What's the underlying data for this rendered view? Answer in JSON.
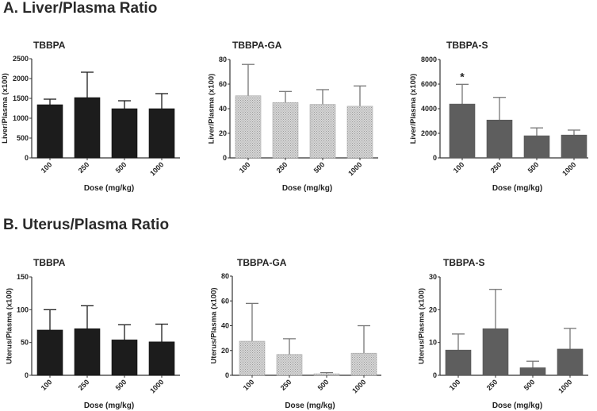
{
  "figure": {
    "section_a_title": "A. Liver/Plasma Ratio",
    "section_b_title": "B. Uterus/Plasma Ratio"
  },
  "chart_data": [
    {
      "type": "bar",
      "section": "A",
      "title": "TBBPA",
      "xlabel": "Dose (mg/kg)",
      "ylabel": "Liver/Plasma (x100)",
      "categories": [
        "100",
        "250",
        "500",
        "1000"
      ],
      "values": [
        1340,
        1520,
        1240,
        1240
      ],
      "error_upper": [
        1480,
        2160,
        1440,
        1620
      ],
      "ylim": [
        0,
        2500
      ],
      "yticks": [
        0,
        500,
        1000,
        1500,
        2000,
        2500
      ],
      "fill": "solid-black",
      "annotations": []
    },
    {
      "type": "bar",
      "section": "A",
      "title": "TBBPA-GA",
      "xlabel": "Dose (mg/kg)",
      "ylabel": "Liver/Plasma (x100)",
      "categories": [
        "100",
        "250",
        "500",
        "1000"
      ],
      "values": [
        50.5,
        45,
        43.5,
        42
      ],
      "error_upper": [
        76,
        54,
        55.5,
        58.5
      ],
      "ylim": [
        0,
        80
      ],
      "yticks": [
        0,
        20,
        40,
        60,
        80
      ],
      "fill": "hatched-light-gray",
      "annotations": []
    },
    {
      "type": "bar",
      "section": "A",
      "title": "TBBPA-S",
      "xlabel": "Dose (mg/kg)",
      "ylabel": "Liver/Plasma (x100)",
      "categories": [
        "100",
        "250",
        "500",
        "1000"
      ],
      "values": [
        4380,
        3080,
        1800,
        1860
      ],
      "error_upper": [
        5980,
        4920,
        2440,
        2260
      ],
      "ylim": [
        0,
        8000
      ],
      "yticks": [
        0,
        2000,
        4000,
        6000,
        8000
      ],
      "fill": "solid-gray",
      "annotations": [
        {
          "category": "100",
          "text": "*"
        }
      ]
    },
    {
      "type": "bar",
      "section": "B",
      "title": "TBBPA",
      "xlabel": "Dose (mg/kg)",
      "ylabel": "Uterus/Plasma (x100)",
      "categories": [
        "100",
        "250",
        "500",
        "1000"
      ],
      "values": [
        69,
        71,
        54,
        51
      ],
      "error_upper": [
        100,
        106,
        77,
        78
      ],
      "ylim": [
        0,
        150
      ],
      "yticks": [
        0,
        50,
        100,
        150
      ],
      "fill": "solid-black",
      "annotations": []
    },
    {
      "type": "bar",
      "section": "B",
      "title": "TBBPA-GA",
      "xlabel": "Dose (mg/kg)",
      "ylabel": "Uterus/Plasma (x100)",
      "categories": [
        "100",
        "250",
        "500",
        "1000"
      ],
      "values": [
        27.5,
        16.8,
        1.2,
        17.8
      ],
      "error_upper": [
        58,
        29.5,
        2.2,
        40
      ],
      "ylim": [
        0,
        80
      ],
      "yticks": [
        0,
        20,
        40,
        60,
        80
      ],
      "fill": "hatched-light-gray",
      "annotations": []
    },
    {
      "type": "bar",
      "section": "B",
      "title": "TBBPA-S",
      "xlabel": "Dose (mg/kg)",
      "ylabel": "Uterus/Plasma (x100)",
      "categories": [
        "100",
        "250",
        "500",
        "1000"
      ],
      "values": [
        7.7,
        14.2,
        2.3,
        8.0
      ],
      "error_upper": [
        12.6,
        26.2,
        4.3,
        14.3
      ],
      "ylim": [
        0,
        30
      ],
      "yticks": [
        0,
        10,
        20,
        30
      ],
      "fill": "solid-gray",
      "annotations": []
    }
  ],
  "colors": {
    "solid-black": "#1c1c1c",
    "solid-gray": "#5e5e5e",
    "hatched-light-gray": "#c8c8c8",
    "axis": "#333333",
    "error_black": "#1c1c1c",
    "error_gray": "#777777"
  }
}
